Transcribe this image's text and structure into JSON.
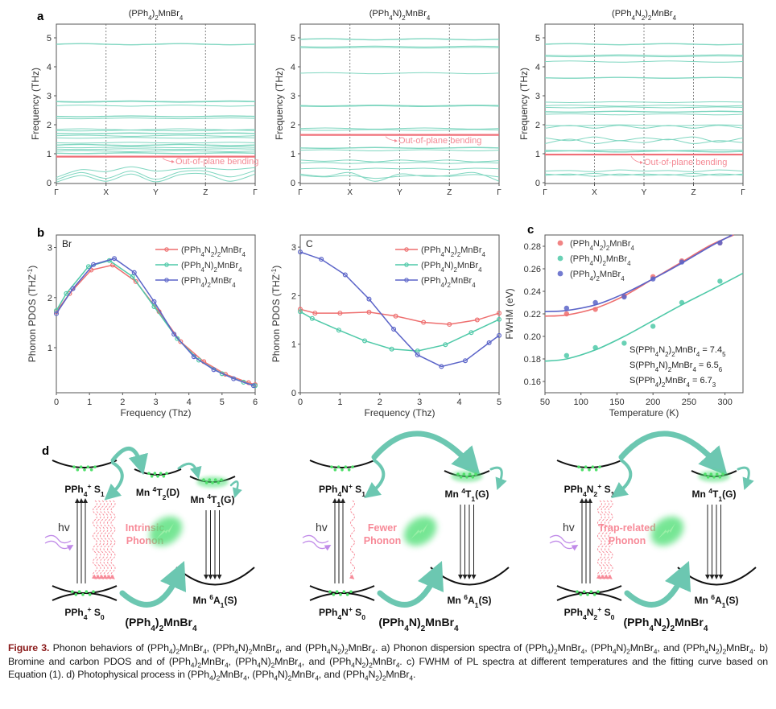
{
  "figure": {
    "panel_letters": {
      "a": "a",
      "b": "b",
      "c": "c",
      "d": "d"
    }
  },
  "chart_data": [
    {
      "id": "a1",
      "type": "line",
      "panel": "a",
      "title": "(PPh4)2MnBr4",
      "ylabel": "Frequency (THz)",
      "xlabel": "",
      "x_ticks": [
        "Γ",
        "X",
        "Y",
        "Z",
        "Γ"
      ],
      "y_ticks": [
        0,
        1,
        2,
        3,
        4,
        5
      ],
      "ylim": [
        0,
        5.5
      ],
      "annotation": "Out-of-plane bending",
      "highlight_band": 0.9,
      "bands": [
        4.78,
        2.81,
        2.79,
        2.66,
        2.29,
        2.22,
        1.84,
        1.8,
        1.7,
        1.62,
        1.55,
        1.38,
        1.3,
        1.22,
        1.16,
        1.09,
        1.02
      ],
      "acoustic": [
        [
          0.18,
          0.45,
          0.38,
          0.55,
          0.4,
          0.48,
          0.5,
          0.45,
          0.52
        ],
        [
          0.1,
          0.35,
          0.15,
          0.4,
          0.12,
          0.38,
          0.4,
          0.2,
          0.42
        ],
        [
          0.02,
          0.25,
          0.05,
          0.3,
          0.03,
          0.28,
          0.3,
          0.05,
          0.3
        ]
      ]
    },
    {
      "id": "a2",
      "type": "line",
      "panel": "a",
      "title": "(PPh4N)2MnBr4",
      "ylabel": "Frequency (THz)",
      "xlabel": "",
      "x_ticks": [
        "Γ",
        "X",
        "Y",
        "Z",
        "Γ"
      ],
      "y_ticks": [
        0,
        1,
        2,
        3,
        4,
        5
      ],
      "ylim": [
        0,
        5.5
      ],
      "annotation": "Out-of-plane bending",
      "highlight_band": 1.65,
      "bands": [
        4.95,
        4.7,
        4.66,
        3.78,
        2.66,
        2.64,
        1.87,
        1.82,
        1.2,
        1.12
      ],
      "acoustic": [
        [
          0.78,
          0.74,
          0.78,
          0.72,
          0.78,
          0.74,
          0.78,
          0.72,
          0.76
        ],
        [
          0.68,
          0.7,
          0.66,
          0.7,
          0.68,
          0.7,
          0.66,
          0.7,
          0.68
        ],
        [
          0.48,
          0.5,
          0.46,
          0.5,
          0.48,
          0.5,
          0.46,
          0.5,
          0.48
        ],
        [
          0.3,
          0.22,
          0.35,
          0.05,
          0.3,
          0.22,
          0.25,
          0.35,
          0.05
        ],
        [
          0.25,
          0.2,
          0.25,
          0.15,
          0.22,
          0.25,
          0.22,
          0.28,
          0.2
        ]
      ]
    },
    {
      "id": "a3",
      "type": "line",
      "panel": "a",
      "title": "(PPh4N2)2MnBr4",
      "ylabel": "Frequency (THz)",
      "xlabel": "",
      "x_ticks": [
        "Γ",
        "X",
        "Y",
        "Z",
        "Γ"
      ],
      "y_ticks": [
        0,
        1,
        2,
        3,
        4,
        5
      ],
      "ylim": [
        0,
        5.5
      ],
      "annotation": "Out-of-plane bending",
      "highlight_band": 0.97,
      "bands": [
        4.78,
        4.4,
        4.36,
        4.18,
        3.62,
        2.78,
        2.66,
        2.6,
        2.45,
        2.36,
        1.98,
        1.12,
        1.08
      ],
      "acoustic": [
        [
          1.88,
          1.98,
          1.88,
          1.98,
          1.88,
          1.98,
          1.88,
          1.98,
          1.88
        ],
        [
          1.55,
          1.45,
          1.58,
          1.45,
          1.55,
          1.48,
          1.58,
          1.4,
          1.55
        ],
        [
          1.35,
          1.5,
          1.35,
          1.45,
          1.38,
          1.5,
          1.35,
          1.45,
          1.38
        ],
        [
          0.4,
          0.42,
          0.38,
          0.44,
          0.4,
          0.42,
          0.38,
          0.44,
          0.4
        ],
        [
          0.3,
          0.26,
          0.32,
          0.25,
          0.3,
          0.26,
          0.32,
          0.25,
          0.3
        ],
        [
          0.25,
          0.3,
          0.22,
          0.3,
          0.25,
          0.28,
          0.22,
          0.3,
          0.26
        ]
      ]
    },
    {
      "id": "b",
      "type": "line",
      "panel": "b",
      "title": "",
      "inset_label": "Br",
      "xlabel": "Frequency (Thz)",
      "ylabel": "Phonon PDOS (THZ-1)",
      "xlim": [
        0,
        6
      ],
      "ylim": [
        0.1,
        3.25
      ],
      "x_ticks": [
        0,
        1,
        2,
        3,
        4,
        5,
        6
      ],
      "y_ticks": [
        1,
        2,
        3
      ],
      "legend": "top-right",
      "series": [
        {
          "name": "(PPh4N2)2MnBr4",
          "color": "#ee6f6f",
          "x": [
            0,
            0.4,
            1.05,
            1.7,
            2.4,
            3.1,
            3.75,
            4.45,
            5.1,
            5.8,
            6.0
          ],
          "y": [
            1.72,
            2.08,
            2.55,
            2.65,
            2.32,
            1.72,
            1.12,
            0.72,
            0.47,
            0.3,
            0.26
          ]
        },
        {
          "name": "(PPh4N)2MnBr4",
          "color": "#4fc9a8",
          "x": [
            0,
            0.3,
            0.97,
            1.6,
            2.3,
            2.95,
            3.65,
            4.3,
            5.0,
            5.65,
            6.0
          ],
          "y": [
            1.74,
            2.08,
            2.62,
            2.74,
            2.42,
            1.82,
            1.18,
            0.75,
            0.48,
            0.31,
            0.24
          ]
        },
        {
          "name": "(PPh4)2MnBr4",
          "color": "#5b64c8",
          "x": [
            0,
            0.5,
            1.12,
            1.75,
            2.35,
            2.95,
            3.55,
            4.15,
            4.75,
            5.35,
            5.95
          ],
          "y": [
            1.68,
            2.18,
            2.66,
            2.78,
            2.5,
            1.92,
            1.27,
            0.82,
            0.56,
            0.38,
            0.24
          ]
        }
      ]
    },
    {
      "id": "c_carbon",
      "type": "line",
      "panel": "b",
      "title": "",
      "inset_label": "C",
      "xlabel": "Frequency (Thz)",
      "ylabel": "Phonon PDOS (THZ-1)",
      "xlim": [
        0,
        5
      ],
      "ylim": [
        0,
        3.25
      ],
      "x_ticks": [
        0,
        1,
        2,
        3,
        4,
        5
      ],
      "y_ticks": [
        0,
        1,
        2,
        3
      ],
      "legend": "top-right",
      "series": [
        {
          "name": "(PPh4N2)2MnBr4",
          "color": "#ee6f6f",
          "x": [
            0,
            0.37,
            1.0,
            1.73,
            2.4,
            3.1,
            3.75,
            4.45,
            5.0
          ],
          "y": [
            1.72,
            1.64,
            1.64,
            1.66,
            1.58,
            1.45,
            1.41,
            1.5,
            1.64
          ]
        },
        {
          "name": "(PPh4N)2MnBr4",
          "color": "#4fc9a8",
          "x": [
            0,
            0.3,
            0.97,
            1.62,
            2.3,
            2.95,
            3.65,
            4.3,
            5.0
          ],
          "y": [
            1.67,
            1.53,
            1.29,
            1.07,
            0.9,
            0.86,
            0.99,
            1.24,
            1.51
          ]
        },
        {
          "name": "(PPh4)2MnBr4",
          "color": "#5b64c8",
          "x": [
            0,
            0.53,
            1.13,
            1.73,
            2.35,
            2.95,
            3.55,
            4.15,
            4.75,
            5.0
          ],
          "y": [
            2.9,
            2.75,
            2.43,
            1.93,
            1.31,
            0.78,
            0.54,
            0.66,
            1.03,
            1.18
          ]
        }
      ]
    },
    {
      "id": "c",
      "type": "scatter",
      "panel": "c",
      "title": "",
      "xlabel": "Temperature (K)",
      "ylabel": "FWHM (eV)",
      "xlim": [
        50,
        325
      ],
      "ylim": [
        0.15,
        0.29
      ],
      "x_ticks": [
        50,
        100,
        150,
        200,
        250,
        300
      ],
      "y_ticks": [
        0.16,
        0.18,
        0.2,
        0.22,
        0.24,
        0.26,
        0.28
      ],
      "legend": "top-left",
      "annotations": [
        "S(PPh4N2)2MnBr4 = 7.45",
        "S(PPh4N)2MnBr4 = 6.56",
        "S(PPh4)2MnBr4 = 6.73"
      ],
      "series": [
        {
          "name": "(PPh4N2)2MnBr4",
          "color": "#ee6f6f",
          "x": [
            80,
            120,
            160,
            200,
            240,
            293
          ],
          "y": [
            0.22,
            0.224,
            0.236,
            0.253,
            0.267,
            0.283
          ],
          "fit_x": [
            50,
            80,
            120,
            160,
            200,
            240,
            280,
            312
          ],
          "fit_y": [
            0.218,
            0.219,
            0.225,
            0.236,
            0.251,
            0.266,
            0.281,
            0.29
          ]
        },
        {
          "name": "(PPh4N)2MnBr4",
          "color": "#4fc9a8",
          "x": [
            80,
            120,
            160,
            200,
            240,
            293
          ],
          "y": [
            0.183,
            0.19,
            0.194,
            0.209,
            0.23,
            0.249
          ],
          "fit_x": [
            50,
            80,
            120,
            160,
            200,
            240,
            280,
            325
          ],
          "fit_y": [
            0.178,
            0.18,
            0.188,
            0.2,
            0.214,
            0.228,
            0.241,
            0.256
          ]
        },
        {
          "name": "(PPh4)2MnBr4",
          "color": "#5b64c8",
          "x": [
            80,
            120,
            160,
            200,
            240,
            293
          ],
          "y": [
            0.225,
            0.23,
            0.235,
            0.251,
            0.266,
            0.283
          ],
          "fit_x": [
            50,
            80,
            120,
            160,
            200,
            240,
            280,
            310
          ],
          "fit_y": [
            0.222,
            0.223,
            0.228,
            0.238,
            0.251,
            0.265,
            0.28,
            0.29
          ]
        }
      ]
    }
  ],
  "diagrams": [
    {
      "compound": "(PPh4)2MnBr4",
      "s1": "PPh4+ S1",
      "s0": "PPh4+ S0",
      "intermediate": "Mn 4T2(D)",
      "t1": "Mn 4T1(G)",
      "a1": "Mn 6A1(S)",
      "hv": "hv",
      "phonon_label": [
        "Intrinsic",
        "Phonon"
      ],
      "phonon_density": "high"
    },
    {
      "compound": "(PPh4N)2MnBr4",
      "s1": "PPh4N+ S1",
      "s0": "PPh4N+ S0",
      "t1": "Mn 4T1(G)",
      "a1": "Mn 6A1(S)",
      "hv": "hv",
      "phonon_label": [
        "Fewer",
        "Phonon"
      ],
      "phonon_density": "low"
    },
    {
      "compound": "(PPh4N2)2MnBr4",
      "s1": "PPh4N2+ S1",
      "s0": "PPh4N2+ S0",
      "t1": "Mn 4T1(G)",
      "a1": "Mn 6A1(S)",
      "hv": "hv",
      "phonon_label": [
        "Trap-related",
        "Phonon"
      ],
      "phonon_density": "medium"
    }
  ],
  "colors": {
    "band": "#7fd6c0",
    "band_highlight": "#f06f78",
    "annotation": "#f48a95",
    "arrow_teal": "#6cc7b1",
    "glow_green": "#55e07a",
    "phonon_pink": "#f78a98",
    "hv_purple": "#c08ae8"
  },
  "caption": {
    "label": "Figure 3.",
    "text_html": " Phonon behaviors of (PPh<sub>4</sub>)<sub>2</sub>MnBr<sub>4</sub>, (PPh<sub>4</sub>N)<sub>2</sub>MnBr<sub>4</sub>, and (PPh<sub>4</sub>N<sub>2</sub>)<sub>2</sub>MnBr<sub>4</sub>. a) Phonon dispersion spectra of (PPh<sub>4</sub>)<sub>2</sub>MnBr<sub>4</sub>, (PPh<sub>4</sub>N)<sub>2</sub>MnBr<sub>4</sub>, and (PPh<sub>4</sub>N<sub>2</sub>)<sub>2</sub>MnBr<sub>4</sub>. b) Bromine and carbon PDOS and of (PPh<sub>4</sub>)<sub>2</sub>MnBr<sub>4</sub>, (PPh<sub>4</sub>N)<sub>2</sub>MnBr<sub>4</sub>, and (PPh<sub>4</sub>N<sub>2</sub>)<sub>2</sub>MnBr<sub>4</sub>. c) FWHM of PL spectra at different temperatures and the fitting curve based on Equation (1). d) Photophysical process in (PPh<sub>4</sub>)<sub>2</sub>MnBr<sub>4</sub>, (PPh<sub>4</sub>N)<sub>2</sub>MnBr<sub>4</sub>, and (PPh<sub>4</sub>N<sub>2</sub>)<sub>2</sub>MnBr<sub>4</sub>."
  }
}
